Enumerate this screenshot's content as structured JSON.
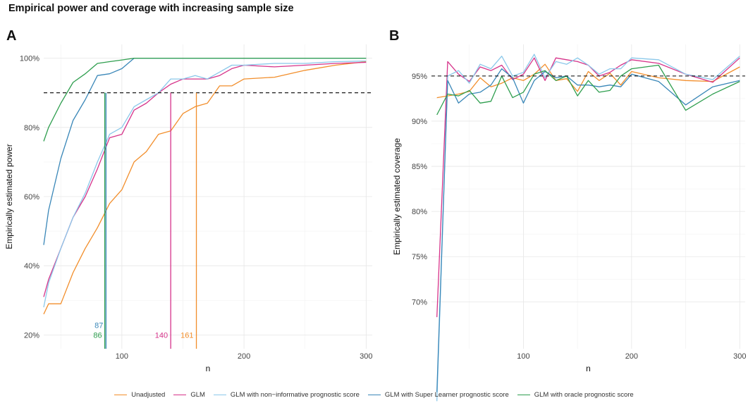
{
  "title": "Empirical power and coverage with increasing sample size",
  "legend": [
    {
      "label": "Unadjusted",
      "color": "#F28E2B"
    },
    {
      "label": "GLM",
      "color": "#D6338A"
    },
    {
      "label": "GLM with non−informative prognostic score",
      "color": "#8BC8EA"
    },
    {
      "label": "GLM with Super Learner prognostic score",
      "color": "#3A87B8"
    },
    {
      "label": "GLM with oracle prognostic score",
      "color": "#2E9E4E"
    }
  ],
  "chart_data": [
    {
      "panel": "A",
      "type": "line",
      "xlabel": "n",
      "ylabel": "Empirically estimated power",
      "xlim": [
        36,
        305
      ],
      "ylim": [
        0.16,
        1.04
      ],
      "xticks": [
        100,
        200,
        300
      ],
      "yticks": [
        0.2,
        0.4,
        0.6,
        0.8,
        1.0
      ],
      "ytick_labels": [
        "20%",
        "40%",
        "60%",
        "80%",
        "100%"
      ],
      "hline": 0.9,
      "x": [
        36,
        40,
        50,
        60,
        70,
        80,
        90,
        100,
        110,
        120,
        130,
        140,
        150,
        160,
        170,
        180,
        190,
        200,
        225,
        250,
        275,
        300
      ],
      "series": [
        {
          "name": "Unadjusted",
          "color": "#F28E2B",
          "values": [
            0.26,
            0.29,
            0.29,
            0.38,
            0.45,
            0.51,
            0.58,
            0.62,
            0.7,
            0.73,
            0.78,
            0.79,
            0.84,
            0.86,
            0.87,
            0.92,
            0.92,
            0.94,
            0.945,
            0.965,
            0.98,
            0.99
          ]
        },
        {
          "name": "GLM",
          "color": "#D6338A",
          "values": [
            0.31,
            0.36,
            0.45,
            0.54,
            0.6,
            0.68,
            0.77,
            0.78,
            0.85,
            0.87,
            0.9,
            0.925,
            0.94,
            0.94,
            0.94,
            0.95,
            0.97,
            0.98,
            0.975,
            0.98,
            0.985,
            0.988
          ]
        },
        {
          "name": "GLM with non−informative prognostic score",
          "color": "#8BC8EA",
          "values": [
            0.28,
            0.35,
            0.45,
            0.54,
            0.61,
            0.7,
            0.78,
            0.8,
            0.86,
            0.88,
            0.9,
            0.94,
            0.94,
            0.95,
            0.94,
            0.96,
            0.98,
            0.98,
            0.985,
            0.985,
            0.99,
            0.992
          ]
        },
        {
          "name": "GLM with Super Learner prognostic score",
          "color": "#3A87B8",
          "values": [
            0.46,
            0.56,
            0.71,
            0.82,
            0.88,
            0.95,
            0.955,
            0.97,
            1.0,
            1.0,
            1.0,
            1.0,
            1.0,
            1.0,
            1.0,
            1.0,
            1.0,
            1.0,
            1.0,
            1.0,
            1.0,
            1.0
          ]
        },
        {
          "name": "GLM with oracle prognostic score",
          "color": "#2E9E4E",
          "values": [
            0.76,
            0.8,
            0.87,
            0.93,
            0.955,
            0.985,
            0.99,
            0.995,
            1.0,
            1.0,
            1.0,
            1.0,
            1.0,
            1.0,
            1.0,
            1.0,
            1.0,
            1.0,
            1.0,
            1.0,
            1.0,
            1.0
          ]
        }
      ],
      "vlines": [
        {
          "x": 86,
          "label": "86",
          "color": "#2E9E4E",
          "label_level": 0.2
        },
        {
          "x": 87,
          "label": "87",
          "color": "#3A87B8",
          "label_level": 0.228
        },
        {
          "x": 140,
          "label": "140",
          "color": "#D6338A",
          "label_level": 0.2
        },
        {
          "x": 161,
          "label": "161",
          "color": "#F28E2B",
          "label_level": 0.2
        }
      ]
    },
    {
      "panel": "B",
      "type": "line",
      "xlabel": "n",
      "ylabel": "Empirically estimated coverage",
      "xlim": [
        15,
        305
      ],
      "ylim": [
        0.648,
        0.985
      ],
      "xticks": [
        100,
        200,
        300
      ],
      "yticks": [
        0.7,
        0.75,
        0.8,
        0.85,
        0.9,
        0.95
      ],
      "ytick_labels": [
        "70%",
        "75%",
        "80%",
        "85%",
        "90%",
        "95%"
      ],
      "hline": 0.95,
      "x": [
        20,
        30,
        40,
        50,
        60,
        70,
        80,
        90,
        100,
        110,
        120,
        130,
        140,
        150,
        160,
        170,
        180,
        190,
        200,
        225,
        250,
        275,
        300
      ],
      "series": [
        {
          "name": "Unadjusted",
          "color": "#F28E2B",
          "values": [
            0.926,
            0.928,
            0.93,
            0.933,
            0.948,
            0.938,
            0.942,
            0.948,
            0.945,
            0.952,
            0.963,
            0.945,
            0.947,
            0.933,
            0.955,
            0.945,
            0.953,
            0.94,
            0.955,
            0.948,
            0.945,
            0.944,
            0.96
          ]
        },
        {
          "name": "GLM",
          "color": "#D6338A",
          "values": [
            0.683,
            0.966,
            0.952,
            0.944,
            0.96,
            0.956,
            0.962,
            0.946,
            0.952,
            0.97,
            0.945,
            0.97,
            0.968,
            0.966,
            0.962,
            0.95,
            0.954,
            0.962,
            0.968,
            0.964,
            0.952,
            0.943,
            0.97
          ]
        },
        {
          "name": "GLM with non−informative prognostic score",
          "color": "#8BC8EA",
          "values": [
            0.59,
            0.95,
            0.956,
            0.942,
            0.963,
            0.958,
            0.972,
            0.95,
            0.954,
            0.974,
            0.948,
            0.966,
            0.963,
            0.97,
            0.962,
            0.952,
            0.958,
            0.958,
            0.97,
            0.968,
            0.952,
            0.946,
            0.972
          ]
        },
        {
          "name": "GLM with Super Learner prognostic score",
          "color": "#3A87B8",
          "values": [
            0.6,
            0.945,
            0.92,
            0.93,
            0.932,
            0.94,
            0.958,
            0.948,
            0.92,
            0.945,
            0.955,
            0.948,
            0.95,
            0.94,
            0.94,
            0.938,
            0.94,
            0.938,
            0.952,
            0.944,
            0.918,
            0.938,
            0.945
          ]
        },
        {
          "name": "GLM with oracle prognostic score",
          "color": "#2E9E4E",
          "values": [
            0.907,
            0.93,
            0.928,
            0.934,
            0.92,
            0.922,
            0.95,
            0.926,
            0.932,
            0.952,
            0.956,
            0.945,
            0.95,
            0.928,
            0.945,
            0.932,
            0.934,
            0.95,
            0.958,
            0.962,
            0.912,
            0.93,
            0.944
          ]
        }
      ]
    }
  ]
}
